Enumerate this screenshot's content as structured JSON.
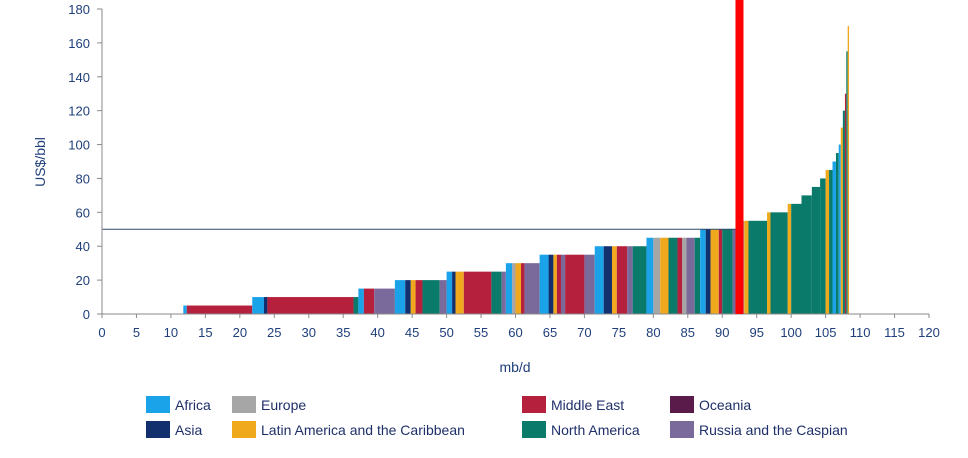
{
  "chart_data": {
    "type": "bar",
    "title": "",
    "xlabel": "mb/d",
    "ylabel": "US$/bbl",
    "xlim": [
      0,
      120
    ],
    "ylim": [
      0,
      180
    ],
    "xticks": [
      0,
      5,
      10,
      15,
      20,
      25,
      30,
      35,
      40,
      45,
      50,
      55,
      60,
      65,
      70,
      75,
      80,
      85,
      90,
      95,
      100,
      105,
      110,
      115,
      120
    ],
    "yticks": [
      0,
      20,
      40,
      60,
      80,
      100,
      120,
      140,
      160,
      180
    ],
    "grid": false,
    "reference_line_y": 50,
    "highlight_line_x": 92.5,
    "highlight_color": "#ff0000",
    "region_colors": {
      "Africa": "#1aa3e8",
      "Europe": "#a6a6a6",
      "Middle East": "#b5203d",
      "Oceania": "#5a1a4a",
      "Asia": "#12306e",
      "Latin America and the Caribbean": "#f0a81c",
      "North America": "#0a7a6a",
      "Russia and the Caspian": "#7a6a9c"
    },
    "legend": [
      {
        "name": "Africa",
        "color": "#1aa3e8"
      },
      {
        "name": "Europe",
        "color": "#a6a6a6"
      },
      {
        "name": "Middle East",
        "color": "#b5203d"
      },
      {
        "name": "Oceania",
        "color": "#5a1a4a"
      },
      {
        "name": "Asia",
        "color": "#12306e"
      },
      {
        "name": "Latin America and the Caribbean",
        "color": "#f0a81c"
      },
      {
        "name": "North America",
        "color": "#0a7a6a"
      },
      {
        "name": "Russia and the Caspian",
        "color": "#7a6a9c"
      }
    ],
    "legend_position": "bottom",
    "bars": [
      {
        "x0": 11.8,
        "x1": 12.3,
        "y": 5,
        "region": "Africa"
      },
      {
        "x0": 12.3,
        "x1": 21.8,
        "y": 5,
        "region": "Middle East"
      },
      {
        "x0": 21.8,
        "x1": 23.5,
        "y": 10,
        "region": "Africa"
      },
      {
        "x0": 23.5,
        "x1": 24.0,
        "y": 10,
        "region": "Asia"
      },
      {
        "x0": 24.0,
        "x1": 36.5,
        "y": 10,
        "region": "Middle East"
      },
      {
        "x0": 36.5,
        "x1": 37.2,
        "y": 10,
        "region": "North America"
      },
      {
        "x0": 37.2,
        "x1": 38.0,
        "y": 15,
        "region": "Africa"
      },
      {
        "x0": 38.0,
        "x1": 39.5,
        "y": 15,
        "region": "Middle East"
      },
      {
        "x0": 39.5,
        "x1": 42.5,
        "y": 15,
        "region": "Russia and the Caspian"
      },
      {
        "x0": 42.5,
        "x1": 44.0,
        "y": 20,
        "region": "Africa"
      },
      {
        "x0": 44.0,
        "x1": 44.8,
        "y": 20,
        "region": "Asia"
      },
      {
        "x0": 44.8,
        "x1": 45.5,
        "y": 20,
        "region": "Latin America and the Caribbean"
      },
      {
        "x0": 45.5,
        "x1": 46.5,
        "y": 20,
        "region": "Middle East"
      },
      {
        "x0": 46.5,
        "x1": 49.0,
        "y": 20,
        "region": "North America"
      },
      {
        "x0": 49.0,
        "x1": 50.0,
        "y": 20,
        "region": "Russia and the Caspian"
      },
      {
        "x0": 50.0,
        "x1": 50.8,
        "y": 25,
        "region": "Africa"
      },
      {
        "x0": 50.8,
        "x1": 51.3,
        "y": 25,
        "region": "Asia"
      },
      {
        "x0": 51.3,
        "x1": 52.5,
        "y": 25,
        "region": "Latin America and the Caribbean"
      },
      {
        "x0": 52.5,
        "x1": 56.5,
        "y": 25,
        "region": "Middle East"
      },
      {
        "x0": 56.5,
        "x1": 58.0,
        "y": 25,
        "region": "North America"
      },
      {
        "x0": 58.0,
        "x1": 58.6,
        "y": 25,
        "region": "Russia and the Caspian"
      },
      {
        "x0": 58.6,
        "x1": 59.5,
        "y": 30,
        "region": "Africa"
      },
      {
        "x0": 59.5,
        "x1": 60.0,
        "y": 30,
        "region": "Europe"
      },
      {
        "x0": 60.0,
        "x1": 60.8,
        "y": 30,
        "region": "Latin America and the Caribbean"
      },
      {
        "x0": 60.8,
        "x1": 61.3,
        "y": 30,
        "region": "Middle East"
      },
      {
        "x0": 61.3,
        "x1": 63.5,
        "y": 30,
        "region": "Russia and the Caspian"
      },
      {
        "x0": 63.5,
        "x1": 64.8,
        "y": 35,
        "region": "Africa"
      },
      {
        "x0": 64.8,
        "x1": 65.5,
        "y": 35,
        "region": "Asia"
      },
      {
        "x0": 65.5,
        "x1": 66.0,
        "y": 35,
        "region": "Latin America and the Caribbean"
      },
      {
        "x0": 66.0,
        "x1": 66.6,
        "y": 35,
        "region": "Middle East"
      },
      {
        "x0": 66.6,
        "x1": 67.2,
        "y": 35,
        "region": "Russia and the Caspian"
      },
      {
        "x0": 67.2,
        "x1": 70.0,
        "y": 35,
        "region": "Middle East"
      },
      {
        "x0": 70.0,
        "x1": 71.5,
        "y": 35,
        "region": "Russia and the Caspian"
      },
      {
        "x0": 71.5,
        "x1": 72.8,
        "y": 40,
        "region": "Africa"
      },
      {
        "x0": 72.8,
        "x1": 74.0,
        "y": 40,
        "region": "Asia"
      },
      {
        "x0": 74.0,
        "x1": 74.7,
        "y": 40,
        "region": "Latin America and the Caribbean"
      },
      {
        "x0": 74.7,
        "x1": 76.2,
        "y": 40,
        "region": "Middle East"
      },
      {
        "x0": 76.2,
        "x1": 77.0,
        "y": 40,
        "region": "Russia and the Caspian"
      },
      {
        "x0": 77.0,
        "x1": 79.0,
        "y": 40,
        "region": "North America"
      },
      {
        "x0": 79.0,
        "x1": 80.0,
        "y": 45,
        "region": "Africa"
      },
      {
        "x0": 80.0,
        "x1": 81.0,
        "y": 45,
        "region": "Europe"
      },
      {
        "x0": 81.0,
        "x1": 82.2,
        "y": 45,
        "region": "Latin America and the Caribbean"
      },
      {
        "x0": 82.2,
        "x1": 83.5,
        "y": 45,
        "region": "North America"
      },
      {
        "x0": 83.5,
        "x1": 84.2,
        "y": 45,
        "region": "Middle East"
      },
      {
        "x0": 84.2,
        "x1": 84.8,
        "y": 45,
        "region": "Europe"
      },
      {
        "x0": 84.8,
        "x1": 86.0,
        "y": 45,
        "region": "Russia and the Caspian"
      },
      {
        "x0": 86.0,
        "x1": 86.8,
        "y": 45,
        "region": "North America"
      },
      {
        "x0": 86.8,
        "x1": 87.6,
        "y": 50,
        "region": "Africa"
      },
      {
        "x0": 87.6,
        "x1": 88.3,
        "y": 50,
        "region": "Asia"
      },
      {
        "x0": 88.3,
        "x1": 89.5,
        "y": 50,
        "region": "Latin America and the Caribbean"
      },
      {
        "x0": 89.5,
        "x1": 90.0,
        "y": 50,
        "region": "Middle East"
      },
      {
        "x0": 90.0,
        "x1": 91.5,
        "y": 50,
        "region": "North America"
      },
      {
        "x0": 91.5,
        "x1": 92.0,
        "y": 50,
        "region": "Russia and the Caspian"
      },
      {
        "x0": 92.5,
        "x1": 93.2,
        "y": 55,
        "region": "Europe"
      },
      {
        "x0": 93.2,
        "x1": 93.8,
        "y": 55,
        "region": "Latin America and the Caribbean"
      },
      {
        "x0": 93.8,
        "x1": 96.5,
        "y": 55,
        "region": "North America"
      },
      {
        "x0": 96.5,
        "x1": 97.0,
        "y": 60,
        "region": "Latin America and the Caribbean"
      },
      {
        "x0": 97.0,
        "x1": 99.5,
        "y": 60,
        "region": "North America"
      },
      {
        "x0": 99.5,
        "x1": 100.0,
        "y": 65,
        "region": "Latin America and the Caribbean"
      },
      {
        "x0": 100.0,
        "x1": 101.5,
        "y": 65,
        "region": "North America"
      },
      {
        "x0": 101.5,
        "x1": 103.0,
        "y": 70,
        "region": "North America"
      },
      {
        "x0": 103.0,
        "x1": 104.2,
        "y": 75,
        "region": "North America"
      },
      {
        "x0": 104.2,
        "x1": 105.0,
        "y": 80,
        "region": "North America"
      },
      {
        "x0": 105.0,
        "x1": 105.5,
        "y": 85,
        "region": "Latin America and the Caribbean"
      },
      {
        "x0": 105.5,
        "x1": 106.0,
        "y": 85,
        "region": "North America"
      },
      {
        "x0": 106.0,
        "x1": 106.5,
        "y": 90,
        "region": "Africa"
      },
      {
        "x0": 106.5,
        "x1": 106.9,
        "y": 95,
        "region": "North America"
      },
      {
        "x0": 106.9,
        "x1": 107.2,
        "y": 100,
        "region": "Africa"
      },
      {
        "x0": 107.2,
        "x1": 107.5,
        "y": 110,
        "region": "Latin America and the Caribbean"
      },
      {
        "x0": 107.5,
        "x1": 107.8,
        "y": 120,
        "region": "North America"
      },
      {
        "x0": 107.8,
        "x1": 108.0,
        "y": 130,
        "region": "Middle East"
      },
      {
        "x0": 108.0,
        "x1": 108.2,
        "y": 155,
        "region": "North America"
      },
      {
        "x0": 108.2,
        "x1": 108.4,
        "y": 170,
        "region": "Latin America and the Caribbean"
      }
    ]
  }
}
